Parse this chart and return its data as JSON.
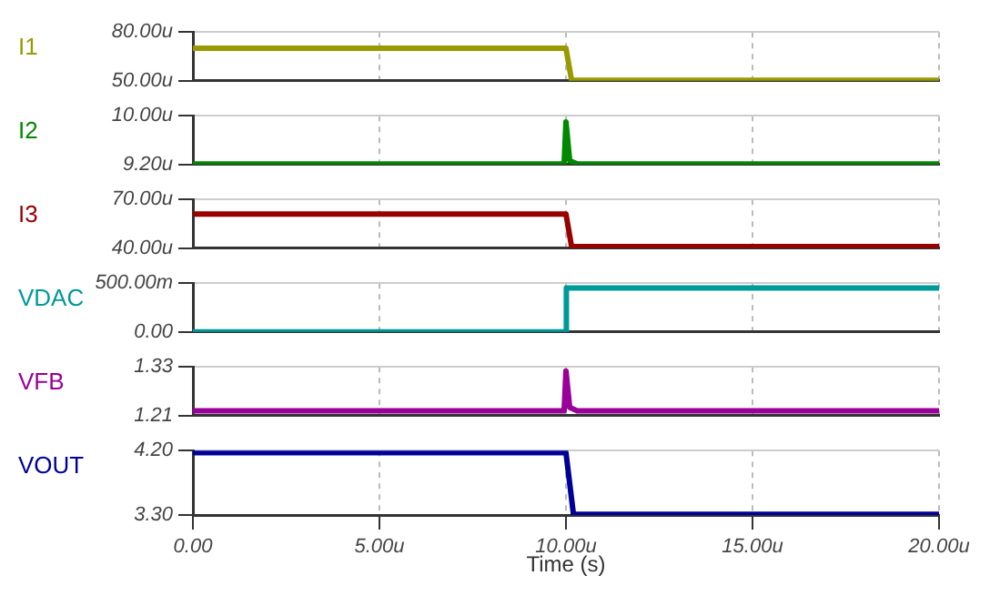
{
  "chart_data": [
    {
      "type": "line",
      "grid": true,
      "tick_labels": "y",
      "xlim": [
        0,
        20
      ],
      "xticks": [
        0,
        5,
        10,
        15,
        20
      ],
      "ylim": [
        50,
        80
      ],
      "yticks": [
        {
          "value": 50,
          "label": "50.00u"
        },
        {
          "value": 80,
          "label": "80.00u"
        }
      ],
      "series": [
        {
          "name": "I1",
          "color": "#999900",
          "x": [
            0,
            10,
            10.15,
            20
          ],
          "values": [
            70,
            70,
            50.3,
            50.3
          ]
        }
      ]
    },
    {
      "type": "line",
      "grid": true,
      "tick_labels": "y",
      "xlim": [
        0,
        20
      ],
      "xticks": [
        0,
        5,
        10,
        15,
        20
      ],
      "ylim": [
        9.2,
        10
      ],
      "yticks": [
        {
          "value": 9.2,
          "label": "9.20u"
        },
        {
          "value": 10,
          "label": "10.00u"
        }
      ],
      "series": [
        {
          "name": "I2",
          "color": "#008800",
          "x": [
            0,
            9.95,
            10,
            10.1,
            10.3,
            20
          ],
          "values": [
            9.21,
            9.21,
            9.9,
            9.26,
            9.21,
            9.21
          ]
        }
      ]
    },
    {
      "type": "line",
      "grid": true,
      "tick_labels": "y",
      "xlim": [
        0,
        20
      ],
      "xticks": [
        0,
        5,
        10,
        15,
        20
      ],
      "ylim": [
        40,
        70
      ],
      "yticks": [
        {
          "value": 40,
          "label": "40.00u"
        },
        {
          "value": 70,
          "label": "70.00u"
        }
      ],
      "series": [
        {
          "name": "I3",
          "color": "#990000",
          "x": [
            0,
            10,
            10.15,
            20
          ],
          "values": [
            61,
            61,
            41,
            41
          ]
        }
      ]
    },
    {
      "type": "line",
      "grid": true,
      "tick_labels": "y",
      "xlim": [
        0,
        20
      ],
      "xticks": [
        0,
        5,
        10,
        15,
        20
      ],
      "ylim": [
        0,
        500
      ],
      "yticks": [
        {
          "value": 0,
          "label": "0.00"
        },
        {
          "value": 500,
          "label": "500.00m"
        }
      ],
      "series": [
        {
          "name": "VDAC",
          "color": "#009999",
          "x": [
            0,
            10,
            10.01,
            20
          ],
          "values": [
            0,
            0,
            450,
            450
          ]
        }
      ]
    },
    {
      "type": "line",
      "grid": true,
      "tick_labels": "y",
      "xlim": [
        0,
        20
      ],
      "xticks": [
        0,
        5,
        10,
        15,
        20
      ],
      "ylim": [
        1.21,
        1.33
      ],
      "yticks": [
        {
          "value": 1.21,
          "label": "1.21"
        },
        {
          "value": 1.33,
          "label": "1.33"
        }
      ],
      "series": [
        {
          "name": "VFB",
          "color": "#990099",
          "x": [
            0,
            9.95,
            10,
            10.1,
            10.3,
            20
          ],
          "values": [
            1.222,
            1.222,
            1.32,
            1.23,
            1.222,
            1.222
          ]
        }
      ]
    },
    {
      "type": "line",
      "grid": true,
      "xlabel": "Time (s)",
      "xlim": [
        0,
        20
      ],
      "xticks": [
        {
          "value": 0,
          "label": "0.00"
        },
        {
          "value": 5,
          "label": "5.00u"
        },
        {
          "value": 10,
          "label": "10.00u"
        },
        {
          "value": 15,
          "label": "15.00u"
        },
        {
          "value": 20,
          "label": "20.00u"
        }
      ],
      "ylim": [
        3.3,
        4.2
      ],
      "yticks": [
        {
          "value": 3.3,
          "label": "3.30"
        },
        {
          "value": 4.2,
          "label": "4.20"
        }
      ],
      "series": [
        {
          "name": "VOUT",
          "color": "#000099",
          "x": [
            0,
            10,
            10.2,
            20
          ],
          "values": [
            4.17,
            4.17,
            3.31,
            3.31
          ]
        }
      ]
    }
  ]
}
